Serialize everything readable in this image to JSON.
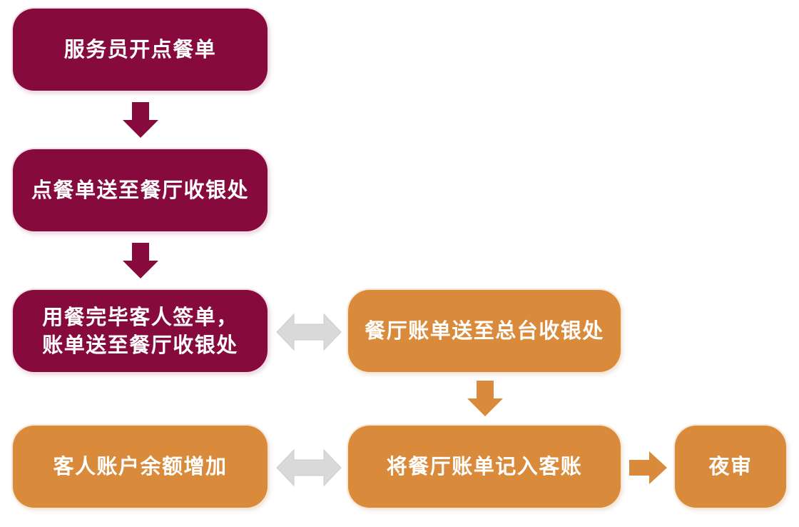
{
  "colors": {
    "maroon": "#870A3D",
    "orange": "#D98A3B",
    "connector": "#D9D9D9",
    "text": "#FFFFFF"
  },
  "icons": {
    "flow_down": "down-arrow-icon",
    "flow_both": "double-arrow-icon",
    "flow_right": "right-arrow-icon"
  },
  "nodes": {
    "waiter_order": {
      "label": "服务员开点餐单"
    },
    "order_to_restaurant_cashier": {
      "label": "点餐单送至餐厅收银处"
    },
    "guest_signs_bill": {
      "lines": [
        "用餐完毕客人签单，",
        "账单送至餐厅收银处"
      ]
    },
    "bill_to_front_desk": {
      "label": "餐厅账单送至总台收银处"
    },
    "guest_balance_increase": {
      "label": "客人账户余额增加"
    },
    "post_to_guest_account": {
      "label": "将餐厅账单记入客账"
    },
    "night_audit": {
      "label": "夜审"
    }
  }
}
